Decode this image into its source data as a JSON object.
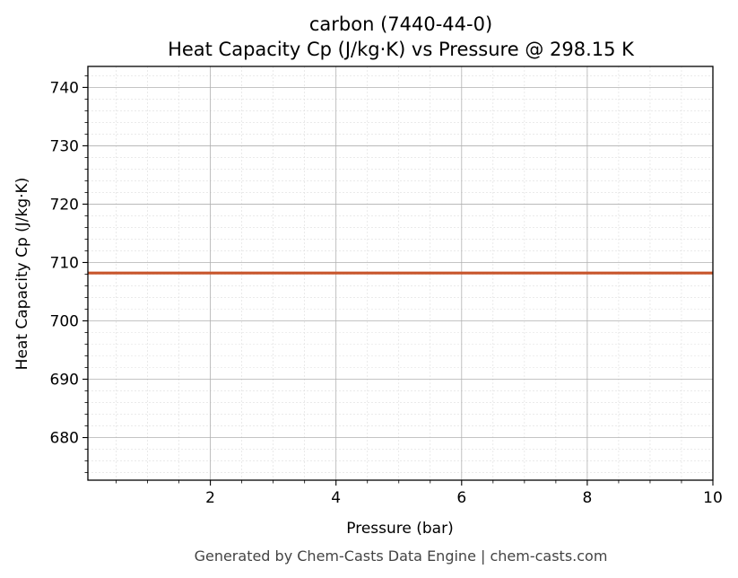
{
  "chart_data": {
    "type": "line",
    "title_line1": "carbon (7440-44-0)",
    "title_line2": "Heat Capacity Cp (J/kg·K) vs Pressure @ 298.15 K",
    "xlabel": "Pressure (bar)",
    "ylabel": "Heat Capacity Cp (J/kg·K)",
    "xlim": [
      0.05,
      10
    ],
    "ylim": [
      672.7,
      743.6
    ],
    "x_ticks": [
      2,
      4,
      6,
      8,
      10
    ],
    "y_ticks": [
      680,
      690,
      700,
      710,
      720,
      730,
      740
    ],
    "grid": true,
    "series": [
      {
        "color": "#c8552b",
        "x": [
          0.05,
          10
        ],
        "y": [
          708.2,
          708.2
        ]
      }
    ]
  },
  "footer": "Generated by Chem-Casts Data Engine | chem-casts.com"
}
